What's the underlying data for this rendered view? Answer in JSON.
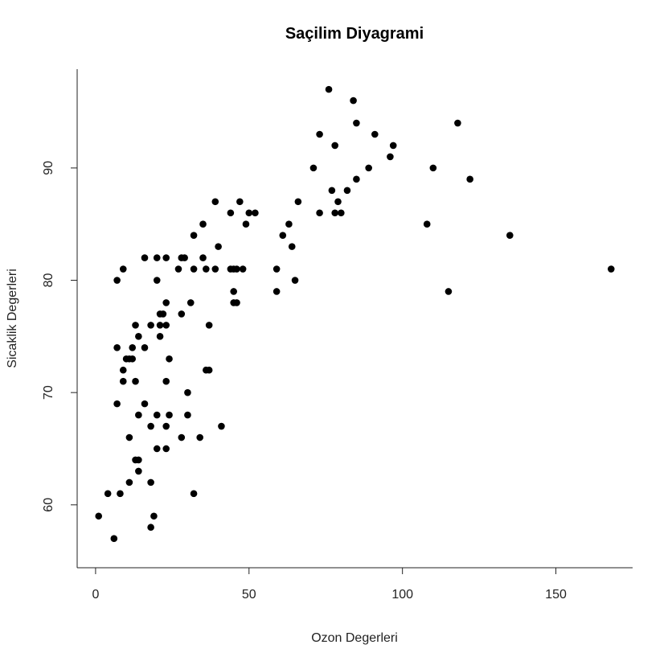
{
  "chart_data": {
    "type": "scatter",
    "title": "Saçilim Diyagrami",
    "xlabel": "Ozon Degerleri",
    "ylabel": "Sicaklik Degerleri",
    "xlim": [
      -6,
      175
    ],
    "ylim": [
      54.4,
      98.8
    ],
    "x_ticks": [
      0,
      50,
      100,
      150
    ],
    "y_ticks": [
      60,
      70,
      80,
      90
    ],
    "x_tick_labels": [
      "0",
      "50",
      "100",
      "150"
    ],
    "y_tick_labels": [
      "60",
      "70",
      "80",
      "90"
    ],
    "grid": false,
    "marker_color": "#000000",
    "points": [
      [
        1,
        59
      ],
      [
        4,
        61
      ],
      [
        6,
        57
      ],
      [
        7,
        80
      ],
      [
        7,
        74
      ],
      [
        7,
        69
      ],
      [
        8,
        61
      ],
      [
        9,
        81
      ],
      [
        9,
        72
      ],
      [
        9,
        71
      ],
      [
        10,
        73
      ],
      [
        11,
        73
      ],
      [
        11,
        66
      ],
      [
        11,
        62
      ],
      [
        12,
        74
      ],
      [
        12,
        73
      ],
      [
        13,
        71
      ],
      [
        13,
        64
      ],
      [
        13,
        76
      ],
      [
        14,
        75
      ],
      [
        14,
        68
      ],
      [
        14,
        64
      ],
      [
        14,
        63
      ],
      [
        16,
        82
      ],
      [
        16,
        74
      ],
      [
        16,
        69
      ],
      [
        18,
        76
      ],
      [
        18,
        67
      ],
      [
        18,
        62
      ],
      [
        18,
        58
      ],
      [
        19,
        59
      ],
      [
        20,
        82
      ],
      [
        20,
        80
      ],
      [
        20,
        68
      ],
      [
        20,
        65
      ],
      [
        21,
        77
      ],
      [
        21,
        76
      ],
      [
        21,
        75
      ],
      [
        22,
        77
      ],
      [
        23,
        82
      ],
      [
        23,
        78
      ],
      [
        23,
        76
      ],
      [
        23,
        71
      ],
      [
        23,
        67
      ],
      [
        23,
        65
      ],
      [
        24,
        73
      ],
      [
        24,
        68
      ],
      [
        27,
        81
      ],
      [
        28,
        82
      ],
      [
        28,
        77
      ],
      [
        28,
        66
      ],
      [
        29,
        82
      ],
      [
        30,
        70
      ],
      [
        30,
        68
      ],
      [
        31,
        78
      ],
      [
        32,
        84
      ],
      [
        32,
        81
      ],
      [
        32,
        61
      ],
      [
        34,
        66
      ],
      [
        35,
        85
      ],
      [
        35,
        82
      ],
      [
        36,
        81
      ],
      [
        36,
        72
      ],
      [
        37,
        76
      ],
      [
        37,
        72
      ],
      [
        39,
        87
      ],
      [
        39,
        81
      ],
      [
        40,
        83
      ],
      [
        41,
        67
      ],
      [
        44,
        86
      ],
      [
        44,
        81
      ],
      [
        45,
        81
      ],
      [
        45,
        79
      ],
      [
        45,
        78
      ],
      [
        46,
        81
      ],
      [
        46,
        78
      ],
      [
        47,
        87
      ],
      [
        48,
        81
      ],
      [
        49,
        85
      ],
      [
        50,
        86
      ],
      [
        52,
        86
      ],
      [
        59,
        81
      ],
      [
        59,
        79
      ],
      [
        61,
        84
      ],
      [
        63,
        85
      ],
      [
        64,
        83
      ],
      [
        65,
        80
      ],
      [
        66,
        87
      ],
      [
        71,
        90
      ],
      [
        73,
        93
      ],
      [
        73,
        86
      ],
      [
        76,
        97
      ],
      [
        77,
        88
      ],
      [
        78,
        92
      ],
      [
        78,
        86
      ],
      [
        79,
        87
      ],
      [
        80,
        86
      ],
      [
        82,
        88
      ],
      [
        84,
        96
      ],
      [
        85,
        94
      ],
      [
        85,
        89
      ],
      [
        89,
        90
      ],
      [
        91,
        93
      ],
      [
        96,
        91
      ],
      [
        97,
        92
      ],
      [
        108,
        85
      ],
      [
        110,
        90
      ],
      [
        115,
        79
      ],
      [
        118,
        94
      ],
      [
        122,
        89
      ],
      [
        135,
        84
      ],
      [
        168,
        81
      ]
    ]
  }
}
